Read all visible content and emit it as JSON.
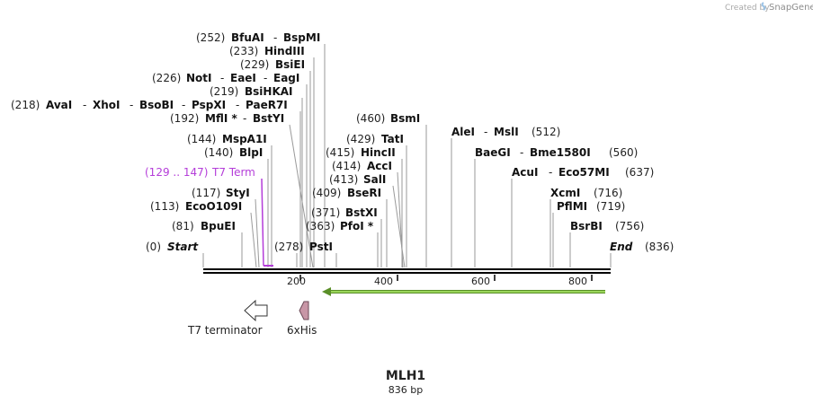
{
  "header": {
    "credit_prefix": "Created by",
    "brand": "SnapGene",
    "logo_icon": "snapgene-logo-icon"
  },
  "map": {
    "name": "MLH1",
    "size_label": "836 bp",
    "length": 836,
    "backbone_color": "#000000"
  },
  "ruler": {
    "ticks": [
      {
        "value": 200,
        "label": "200"
      },
      {
        "value": 400,
        "label": "400"
      },
      {
        "value": 600,
        "label": "600"
      },
      {
        "value": 800,
        "label": "800"
      }
    ]
  },
  "sites": {
    "s_bfuai": {
      "pos": "(252)",
      "names": [
        "BfuAI",
        "BspMI"
      ]
    },
    "s_hindiii": {
      "pos": "(233)",
      "names": [
        "HindIII"
      ]
    },
    "s_bsiei": {
      "pos": "(229)",
      "names": [
        "BsiEI"
      ]
    },
    "s_noti": {
      "pos": "(226)",
      "names": [
        "NotI",
        "EaeI",
        "EagI"
      ]
    },
    "s_bsihkai": {
      "pos": "(219)",
      "names": [
        "BsiHKAI"
      ]
    },
    "s_avai": {
      "pos": "(218)",
      "names": [
        "AvaI",
        "XhoI",
        "BsoBI",
        "PspXI",
        "PaeR7I"
      ]
    },
    "s_mfli": {
      "pos": "(192)",
      "names": [
        "MflI *",
        "BstYI"
      ]
    },
    "s_bsmi": {
      "pos": "(460)",
      "names": [
        "BsmI"
      ]
    },
    "s_alei": {
      "pos": "",
      "names": [
        "AleI",
        "MslI"
      ],
      "pos_after": "(512)"
    },
    "s_mspa1i": {
      "pos": "(144)",
      "names": [
        "MspA1I"
      ]
    },
    "s_tati": {
      "pos": "(429)",
      "names": [
        "TatI"
      ]
    },
    "s_blpi": {
      "pos": "(140)",
      "names": [
        "BlpI"
      ]
    },
    "s_hincii": {
      "pos": "(415)",
      "names": [
        "HincII"
      ]
    },
    "s_baegi": {
      "pos": "",
      "names": [
        "BaeGI",
        "Bme1580I"
      ],
      "pos_after": "(560)"
    },
    "s_acci": {
      "pos": "(414)",
      "names": [
        "AccI"
      ]
    },
    "s_acui": {
      "pos": "",
      "names": [
        "AcuI",
        "Eco57MI"
      ],
      "pos_after": "(637)"
    },
    "s_sali": {
      "pos": "(413)",
      "names": [
        "SalI"
      ]
    },
    "s_styi": {
      "pos": "(117)",
      "names": [
        "StyI"
      ]
    },
    "s_bseri": {
      "pos": "(409)",
      "names": [
        "BseRI"
      ]
    },
    "s_xcmi": {
      "pos": "",
      "names": [
        "XcmI"
      ],
      "pos_after": "(716)"
    },
    "s_eco0109i": {
      "pos": "(113)",
      "names": [
        "EcoO109I"
      ]
    },
    "s_pflmi": {
      "pos": "",
      "names": [
        "PflMI"
      ],
      "pos_after": "(719)"
    },
    "s_bstxi": {
      "pos": "(371)",
      "names": [
        "BstXI"
      ]
    },
    "s_bpuei": {
      "pos": "(81)",
      "names": [
        "BpuEI"
      ]
    },
    "s_pfoi": {
      "pos": "(363)",
      "names": [
        "PfoI *"
      ]
    },
    "s_bsrbi": {
      "pos": "",
      "names": [
        "BsrBI"
      ],
      "pos_after": "(756)"
    },
    "s_psti": {
      "pos": "(278)",
      "names": [
        "PstI"
      ]
    },
    "s_start": {
      "pos": "(0)",
      "names": [
        "Start"
      ]
    },
    "s_end": {
      "pos": "",
      "names": [
        "End"
      ],
      "pos_after": "(836)"
    }
  },
  "terminator_label": {
    "pos": "(129 .. 147)",
    "name": "T7 Term",
    "color": "#b43dd9"
  },
  "features": {
    "t7_terminator": {
      "label": "T7 terminator",
      "icon": "terminator-arrow-icon",
      "fill": "#ffffff"
    },
    "his_tag": {
      "label": "6xHis",
      "icon": "his-tag-icon",
      "fill": "#c896a6"
    },
    "orf_arrow": {
      "icon": "orf-arrow-icon",
      "fill": "#7fbf3f"
    }
  }
}
